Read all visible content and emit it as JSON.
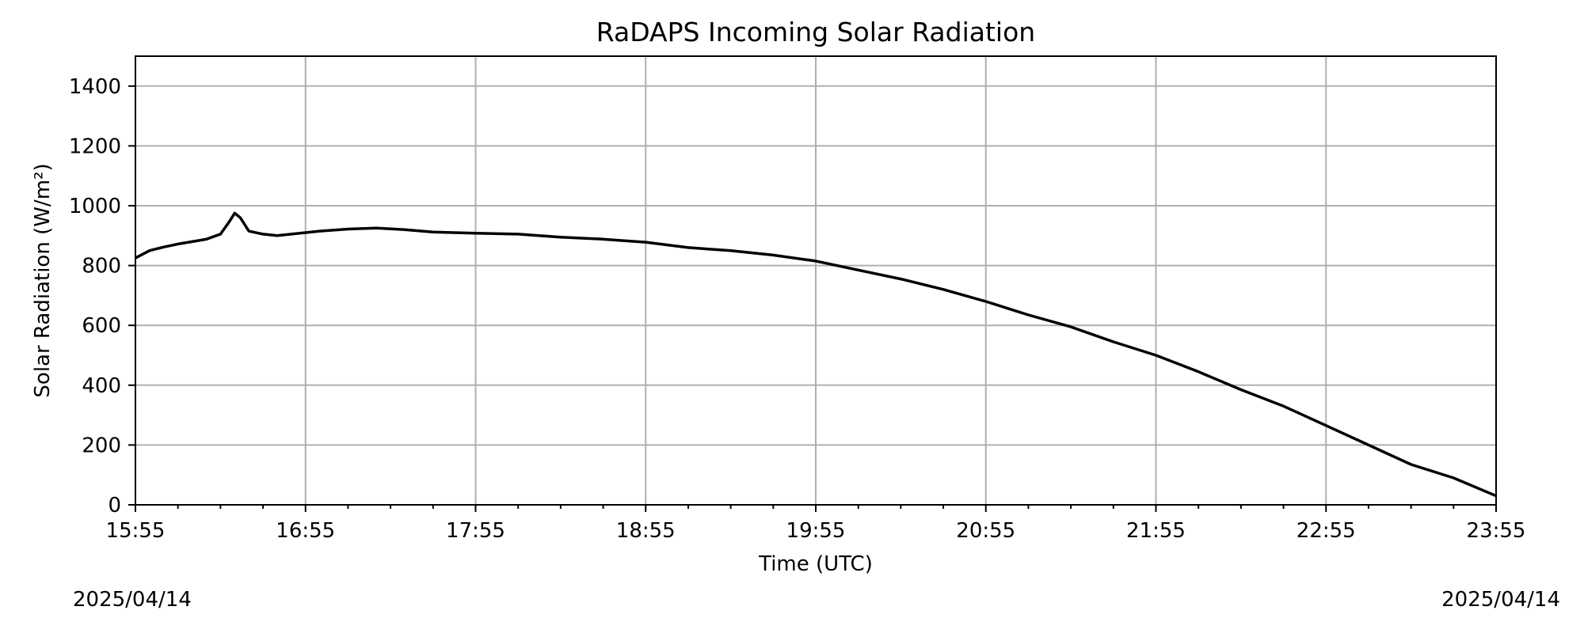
{
  "chart_data": {
    "type": "line",
    "title": "RaDAPS Incoming Solar Radiation",
    "xlabel": "Time (UTC)",
    "ylabel": "Solar Radiation (W/m²)",
    "date_left": "2025/04/14",
    "date_right": "2025/04/14",
    "xlim": [
      "15:55",
      "23:55"
    ],
    "ylim": [
      0,
      1500
    ],
    "x_ticks": [
      "15:55",
      "16:55",
      "17:55",
      "18:55",
      "19:55",
      "20:55",
      "21:55",
      "22:55",
      "23:55"
    ],
    "y_ticks": [
      0,
      200,
      400,
      600,
      800,
      1000,
      1200,
      1400
    ],
    "grid": true,
    "series": [
      {
        "color": "#000000",
        "x": [
          "15:55",
          "16:00",
          "16:05",
          "16:10",
          "16:15",
          "16:20",
          "16:25",
          "16:28",
          "16:30",
          "16:32",
          "16:35",
          "16:40",
          "16:45",
          "16:50",
          "16:55",
          "17:00",
          "17:10",
          "17:20",
          "17:30",
          "17:40",
          "17:55",
          "18:10",
          "18:25",
          "18:40",
          "18:55",
          "19:10",
          "19:25",
          "19:40",
          "19:55",
          "20:10",
          "20:25",
          "20:40",
          "20:55",
          "21:10",
          "21:25",
          "21:40",
          "21:55",
          "22:10",
          "22:25",
          "22:40",
          "22:55",
          "23:10",
          "23:25",
          "23:40",
          "23:55"
        ],
        "y": [
          825,
          850,
          862,
          872,
          880,
          888,
          905,
          945,
          975,
          960,
          915,
          905,
          900,
          905,
          910,
          915,
          922,
          925,
          920,
          912,
          908,
          905,
          895,
          888,
          878,
          860,
          850,
          835,
          815,
          785,
          755,
          720,
          680,
          635,
          595,
          545,
          500,
          445,
          385,
          330,
          265,
          200,
          135,
          90,
          30
        ]
      }
    ]
  }
}
